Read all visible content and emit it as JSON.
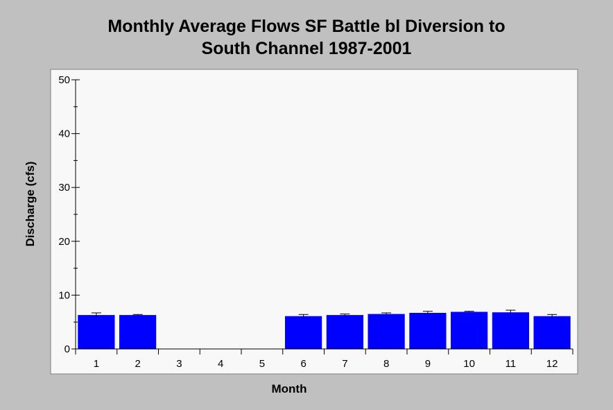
{
  "chart_data": {
    "type": "bar",
    "title_line1": "Monthly Average Flows SF Battle bl Diversion to",
    "title_line2": "South Channel 1987-2001",
    "xlabel": "Month",
    "ylabel": "Discharge (cfs)",
    "ylim": [
      0,
      50
    ],
    "yticks": [
      0,
      10,
      20,
      30,
      40,
      50
    ],
    "categories": [
      "1",
      "2",
      "3",
      "4",
      "5",
      "6",
      "7",
      "8",
      "9",
      "10",
      "11",
      "12"
    ],
    "values": [
      6.3,
      6.3,
      null,
      null,
      null,
      6.1,
      6.3,
      6.5,
      6.7,
      6.9,
      6.8,
      6.1
    ],
    "errors": [
      0.4,
      0.1,
      null,
      null,
      null,
      0.3,
      0.2,
      0.2,
      0.3,
      0.1,
      0.4,
      0.3
    ],
    "bar_color": "#0000ff",
    "plot_background": "#f8f8f8",
    "page_background": "#c0c0c0",
    "grid": false,
    "legend": "none"
  }
}
